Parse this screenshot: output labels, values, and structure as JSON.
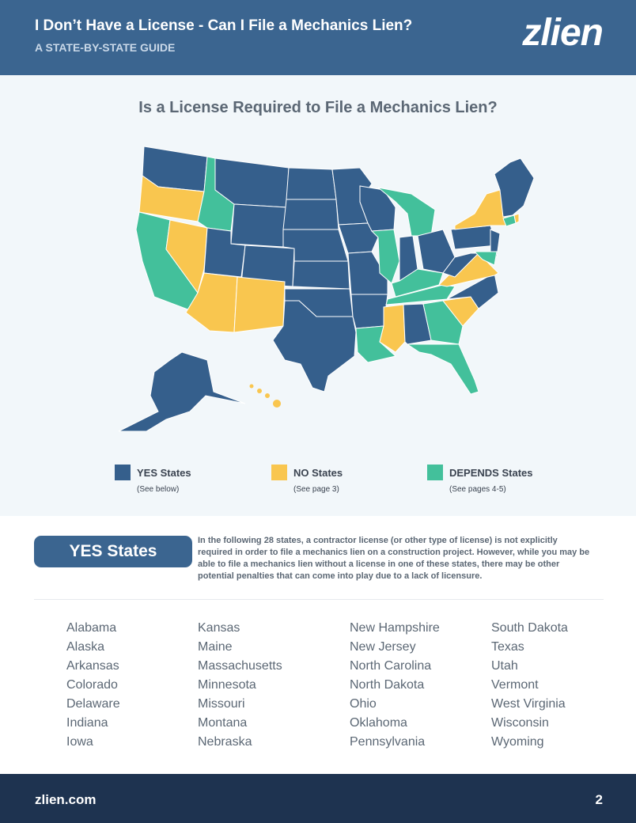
{
  "header": {
    "title": "I Don’t Have a License - Can I File a Mechanics Lien?",
    "subtitle": "A STATE-BY-STATE GUIDE",
    "logo": "zlien"
  },
  "map": {
    "title": "Is a License Required to File a Mechanics Lien?",
    "legend": [
      {
        "label": "YES States",
        "note": "(See below)",
        "color": "#355f8c"
      },
      {
        "label": "NO States",
        "note": "(See page 3)",
        "color": "#f9c64f"
      },
      {
        "label": "DEPENDS States",
        "note": "(See pages 4-5)",
        "color": "#43c09b"
      }
    ]
  },
  "yes_section": {
    "heading": "YES States",
    "description": "In the following 28 states, a contractor license (or other type of license) is not explicitly required in order to file a mechanics lien on a construction project. However, while you may be able to file a mechanics lien without a license in one of these states, there may be other potential penalties that can come into play due to a lack of licensure.",
    "columns": [
      [
        "Alabama",
        "Alaska",
        "Arkansas",
        "Colorado",
        "Delaware",
        "Indiana",
        "Iowa"
      ],
      [
        "Kansas",
        "Maine",
        "Massachusetts",
        "Minnesota",
        "Missouri",
        "Montana",
        "Nebraska"
      ],
      [
        "New Hampshire",
        "New Jersey",
        "North Carolina",
        "North Dakota",
        "Ohio",
        "Oklahoma",
        "Pennsylvania"
      ],
      [
        "South Dakota",
        "Texas",
        "Utah",
        "Vermont",
        "West Virginia",
        "Wisconsin",
        "Wyoming"
      ]
    ]
  },
  "footer": {
    "url": "zlien.com",
    "page": "2"
  }
}
